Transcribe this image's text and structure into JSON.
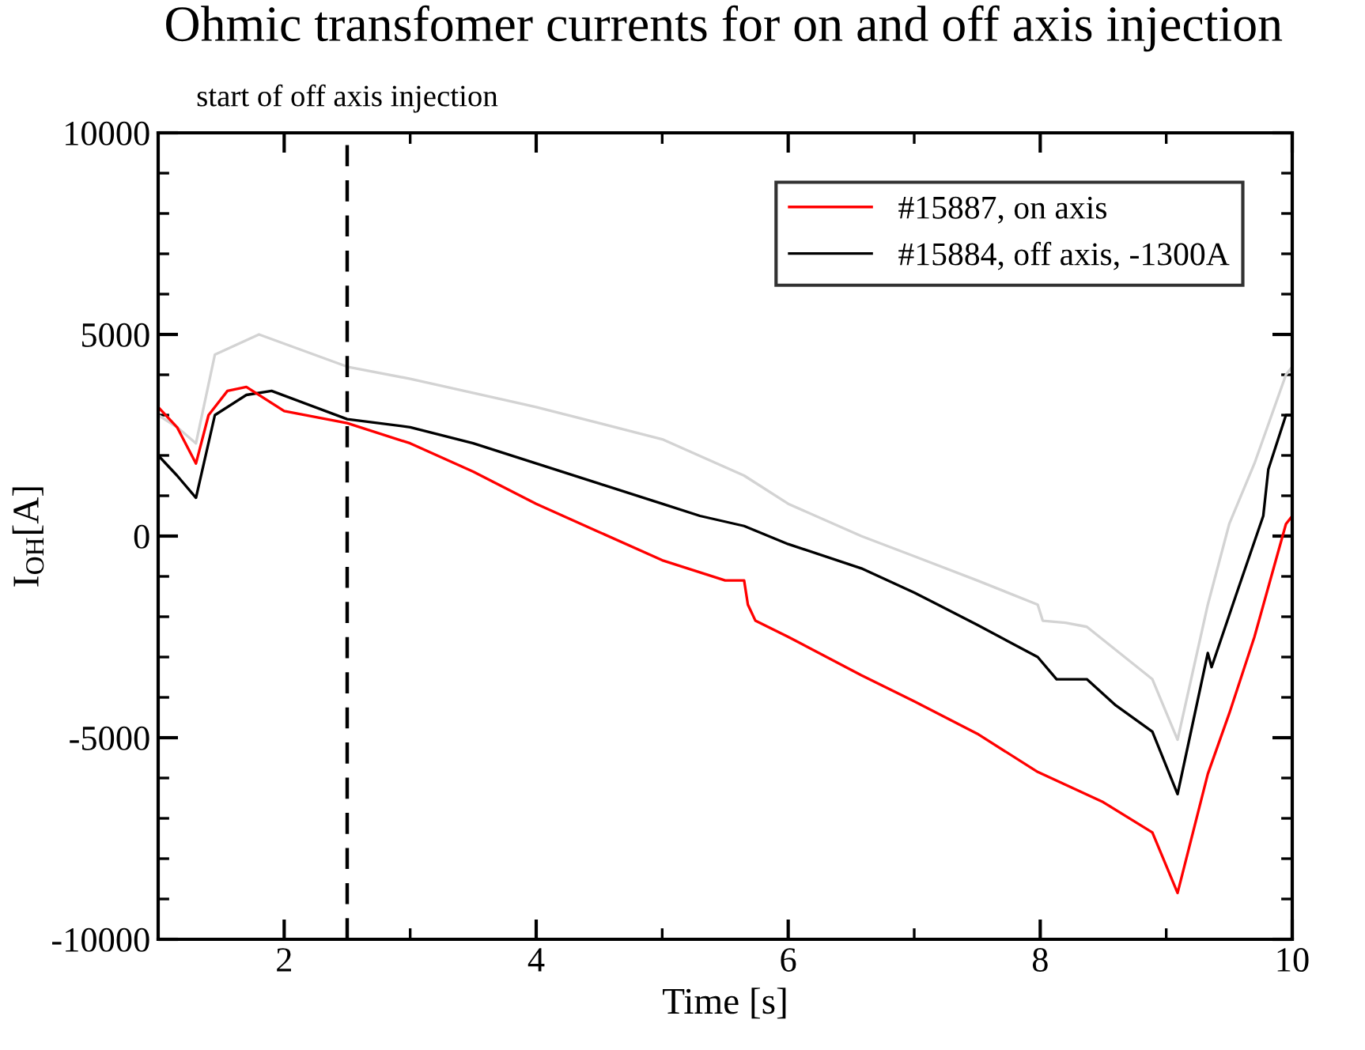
{
  "chart_data": {
    "type": "line",
    "title": "Ohmic transfomer currents for on and off axis injection",
    "xlabel": "Time [s]",
    "ylabel": "I$_{OH}$[A]",
    "series": [
      {
        "name": "#15887, on axis",
        "color": "#ff0000",
        "x": [
          1.0,
          1.15,
          1.3,
          1.4,
          1.55,
          1.7,
          2.0,
          2.5,
          3.0,
          3.5,
          4.0,
          4.5,
          5.0,
          5.5,
          5.65,
          5.68,
          5.74,
          6.0,
          6.58,
          7.0,
          7.5,
          7.98,
          8.5,
          8.89,
          9.09,
          9.33,
          9.5,
          9.7,
          9.95,
          10.0
        ],
        "values": [
          3200,
          2700,
          1800,
          3000,
          3600,
          3700,
          3100,
          2800,
          2300,
          1600,
          800,
          100,
          -600,
          -1100,
          -1100,
          -1700,
          -2100,
          -2500,
          -3450,
          -4100,
          -4900,
          -5850,
          -6600,
          -7350,
          -8850,
          -5900,
          -4400,
          -2500,
          300,
          500
        ]
      },
      {
        "name": "#15884, off axis, -1300A",
        "color": "#000000",
        "x": [
          1.0,
          1.15,
          1.3,
          1.45,
          1.7,
          1.9,
          2.5,
          3.0,
          3.5,
          4.0,
          4.5,
          5.0,
          5.3,
          5.65,
          6.0,
          6.58,
          7.0,
          7.5,
          7.98,
          8.13,
          8.37,
          8.6,
          8.89,
          9.09,
          9.33,
          9.36,
          9.55,
          9.77,
          9.81,
          9.95,
          10.0
        ],
        "values": [
          2000,
          1500,
          950,
          3000,
          3500,
          3600,
          2900,
          2700,
          2300,
          1800,
          1300,
          800,
          500,
          250,
          -200,
          -800,
          -1400,
          -2200,
          -3000,
          -3550,
          -3550,
          -4200,
          -4850,
          -6400,
          -2900,
          -3250,
          -1500,
          500,
          1650,
          3000,
          3000
        ]
      },
      {
        "color": "#d3d3d3",
        "x": [
          1.0,
          1.15,
          1.3,
          1.45,
          1.8,
          2.5,
          3.0,
          4.0,
          5.0,
          5.65,
          6.0,
          6.58,
          7.0,
          7.5,
          7.98,
          8.02,
          8.2,
          8.37,
          8.89,
          9.09,
          9.33,
          9.5,
          9.7,
          9.95,
          10.0
        ],
        "values": [
          3000,
          2700,
          2300,
          4500,
          5000,
          4200,
          3900,
          3200,
          2400,
          1500,
          800,
          0,
          -500,
          -1100,
          -1700,
          -2100,
          -2150,
          -2250,
          -3550,
          -5050,
          -1700,
          300,
          1800,
          4000,
          4200
        ]
      }
    ],
    "xlim": [
      1,
      10
    ],
    "xticks": [
      2,
      4,
      6,
      8,
      10
    ],
    "ylim": [
      -10000,
      10000
    ],
    "yticks": [
      -10000,
      -5000,
      0,
      5000,
      10000
    ],
    "ref_lines": [
      {
        "axis": "x",
        "value": 2.5,
        "label": "start of off axis injection",
        "color": "#000000",
        "line_style": "dashed"
      }
    ],
    "grid": false,
    "legend": "top right"
  }
}
